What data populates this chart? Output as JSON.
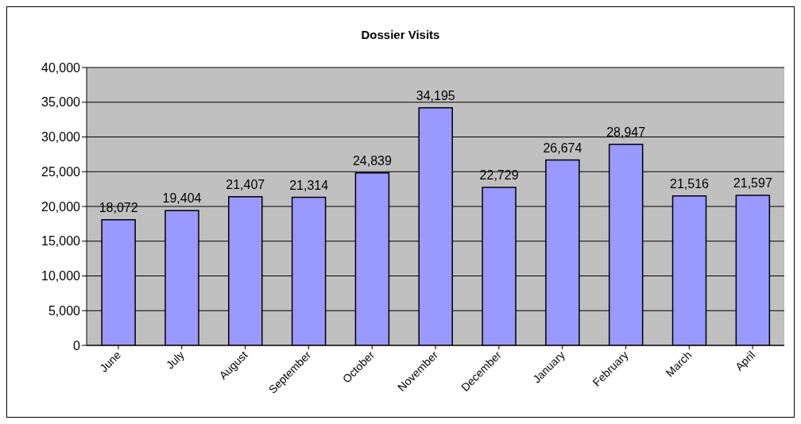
{
  "chart_data": {
    "type": "bar",
    "title": "Dossier Visits",
    "categories": [
      "June",
      "July",
      "August",
      "September",
      "October",
      "November",
      "December",
      "January",
      "February",
      "March",
      "April"
    ],
    "values": [
      18072,
      19404,
      21407,
      21314,
      24839,
      34195,
      22729,
      26674,
      28947,
      21516,
      21597
    ],
    "value_labels": [
      "18,072",
      "19,404",
      "21,407",
      "21,314",
      "24,839",
      "34,195",
      "22,729",
      "26,674",
      "28,947",
      "21,516",
      "21,597"
    ],
    "color": "#9999ff",
    "ylim": [
      0,
      40000
    ],
    "yticks": [
      0,
      {
        "value": 5000,
        "label": "5,000"
      },
      {
        "value": 10000,
        "label": "10,000"
      },
      {
        "value": 15000,
        "label": "15,000"
      },
      {
        "value": 20000,
        "label": "20,000"
      },
      {
        "value": 25000,
        "label": "25,000"
      },
      {
        "value": 30000,
        "label": "30,000"
      },
      {
        "value": 35000,
        "label": "35,000"
      },
      {
        "value": 40000,
        "label": "40,000"
      }
    ],
    "grid": "y",
    "legend": false
  }
}
